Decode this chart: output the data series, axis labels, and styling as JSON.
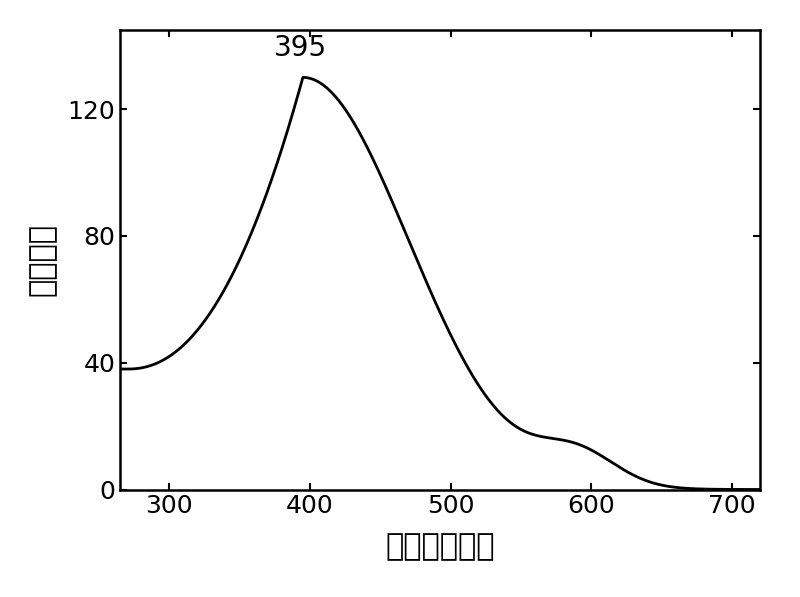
{
  "xlabel": "波长（纳米）",
  "ylabel": "荺光强度",
  "peak_label": "395",
  "peak_x": 395,
  "peak_y": 130,
  "xlim": [
    265,
    720
  ],
  "ylim": [
    0,
    145
  ],
  "xticks": [
    300,
    400,
    500,
    600,
    700
  ],
  "yticks": [
    0,
    40,
    80,
    120
  ],
  "line_color": "#000000",
  "background_color": "#ffffff",
  "annotation_fontsize": 20,
  "xlabel_fontsize": 22,
  "ylabel_fontsize": 22,
  "tick_fontsize": 18
}
